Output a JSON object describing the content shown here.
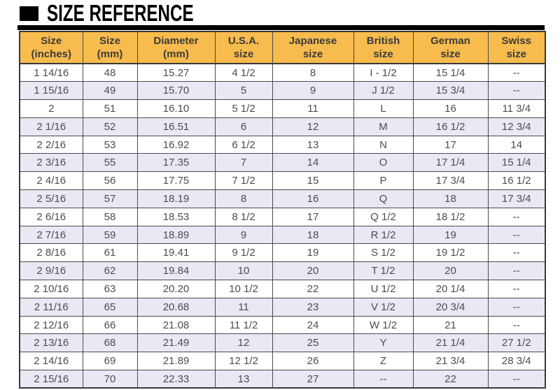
{
  "title": {
    "text": "SIZE REFERENCE"
  },
  "colors": {
    "header_bg": "#F8BB4D",
    "row_bg": "#FFFFFF",
    "row_alt_bg": "#E9E9F4",
    "border": "#4A4A4A",
    "header_text": "#3B3B3B",
    "cell_text": "#4D4D4D",
    "title_text": "#000000"
  },
  "chart_data": {
    "type": "table",
    "title": "SIZE REFERENCE",
    "columns": [
      "Size\n(inches)",
      "Size\n(mm)",
      "Diameter\n(mm)",
      "U.S.A.\nsize",
      "Japanese\nsize",
      "British\nsize",
      "German\nsize",
      "Swiss\nsize"
    ],
    "rows": [
      [
        "1 14/16",
        "48",
        "15.27",
        "4 1/2",
        "8",
        "I - 1/2",
        "15 1/4",
        "--"
      ],
      [
        "1 15/16",
        "49",
        "15.70",
        "5",
        "9",
        "J 1/2",
        "15 3/4",
        "--"
      ],
      [
        "2",
        "51",
        "16.10",
        "5 1/2",
        "11",
        "L",
        "16",
        "11 3/4"
      ],
      [
        "2 1/16",
        "52",
        "16.51",
        "6",
        "12",
        "M",
        "16 1/2",
        "12 3/4"
      ],
      [
        "2 2/16",
        "53",
        "16.92",
        "6 1/2",
        "13",
        "N",
        "17",
        "14"
      ],
      [
        "2 3/16",
        "55",
        "17.35",
        "7",
        "14",
        "O",
        "17 1/4",
        "15 1/4"
      ],
      [
        "2 4/16",
        "56",
        "17.75",
        "7 1/2",
        "15",
        "P",
        "17 3/4",
        "16 1/2"
      ],
      [
        "2 5/16",
        "57",
        "18.19",
        "8",
        "16",
        "Q",
        "18",
        "17 3/4"
      ],
      [
        "2 6/16",
        "58",
        "18.53",
        "8 1/2",
        "17",
        "Q 1/2",
        "18 1/2",
        "--"
      ],
      [
        "2 7/16",
        "59",
        "18.89",
        "9",
        "18",
        "R 1/2",
        "19",
        "--"
      ],
      [
        "2 8/16",
        "61",
        "19.41",
        "9 1/2",
        "19",
        "S 1/2",
        "19 1/2",
        "--"
      ],
      [
        "2 9/16",
        "62",
        "19.84",
        "10",
        "20",
        "T 1/2",
        "20",
        "--"
      ],
      [
        "2 10/16",
        "63",
        "20.20",
        "10 1/2",
        "22",
        "U 1/2",
        "20 1/4",
        "--"
      ],
      [
        "2 11/16",
        "65",
        "20.68",
        "11",
        "23",
        "V 1/2",
        "20 3/4",
        "--"
      ],
      [
        "2 12/16",
        "66",
        "21.08",
        "11 1/2",
        "24",
        "W 1/2",
        "21",
        "--"
      ],
      [
        "2 13/16",
        "68",
        "21.49",
        "12",
        "25",
        "Y",
        "21 1/4",
        "27 1/2"
      ],
      [
        "2 14/16",
        "69",
        "21.89",
        "12 1/2",
        "26",
        "Z",
        "21 3/4",
        "28 3/4"
      ],
      [
        "2 15/16",
        "70",
        "22.33",
        "13",
        "27",
        "--",
        "22",
        "--"
      ]
    ]
  }
}
